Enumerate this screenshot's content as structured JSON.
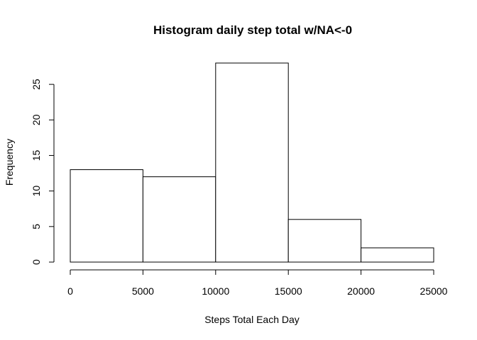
{
  "chart_data": {
    "type": "bar",
    "title": "Histogram daily step total w/NA<-0",
    "xlabel": "Steps Total Each Day",
    "ylabel": "Frequency",
    "bins": [
      {
        "from": 0,
        "to": 5000,
        "count": 13
      },
      {
        "from": 5000,
        "to": 10000,
        "count": 12
      },
      {
        "from": 10000,
        "to": 15000,
        "count": 28
      },
      {
        "from": 15000,
        "to": 20000,
        "count": 6
      },
      {
        "from": 20000,
        "to": 25000,
        "count": 2
      }
    ],
    "xlim": [
      0,
      25000
    ],
    "ylim": [
      0,
      28
    ],
    "xticks": [
      0,
      5000,
      10000,
      15000,
      20000,
      25000
    ],
    "yticks": [
      0,
      5,
      10,
      15,
      20,
      25
    ],
    "grid": false
  }
}
